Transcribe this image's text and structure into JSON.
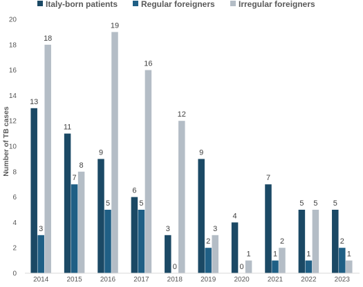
{
  "chart_data": {
    "type": "bar",
    "title": "",
    "xlabel": "",
    "ylabel": "Number of TB cases",
    "ylim": [
      0,
      20
    ],
    "yticks": [
      0,
      2,
      4,
      6,
      8,
      10,
      12,
      14,
      16,
      18,
      20
    ],
    "grid": false,
    "legend_position": "top",
    "categories": [
      "2014",
      "2015",
      "2016",
      "2017",
      "2018",
      "2019",
      "2020",
      "2021",
      "2022",
      "2023"
    ],
    "series": [
      {
        "name": "Italy-born patients",
        "color": "#1b4965",
        "values": [
          13,
          11,
          9,
          6,
          3,
          9,
          4,
          7,
          5,
          5
        ]
      },
      {
        "name": "Regular foreigners",
        "color": "#1f5f85",
        "values": [
          3,
          7,
          5,
          5,
          0,
          2,
          0,
          1,
          1,
          2
        ]
      },
      {
        "name": "Irregular foreigners",
        "color": "#b4bdc6",
        "values": [
          18,
          8,
          19,
          16,
          12,
          3,
          1,
          2,
          5,
          1
        ]
      }
    ]
  }
}
